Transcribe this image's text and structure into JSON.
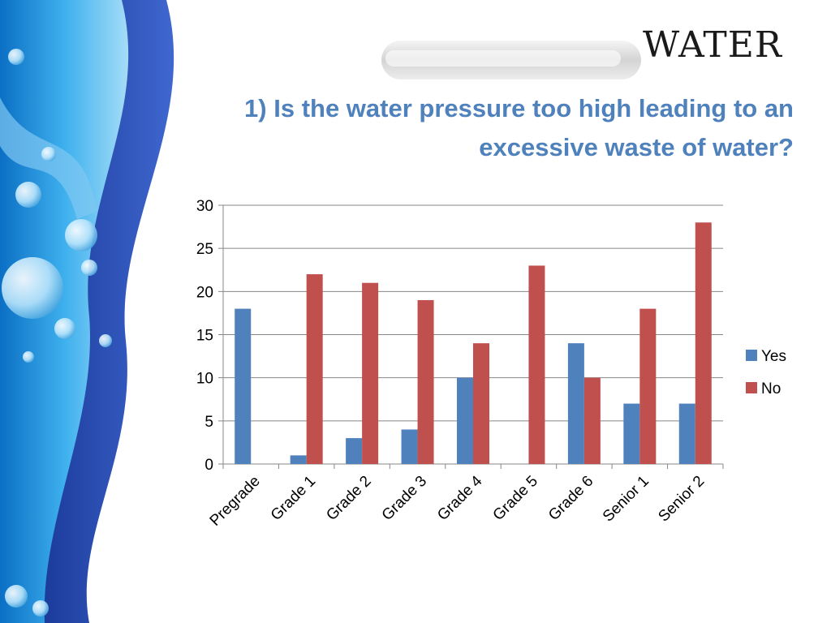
{
  "slide": {
    "title": "WATER",
    "question": "1) Is the water pressure too high leading to an excessive waste of water?"
  },
  "chart_data": {
    "type": "bar",
    "categories": [
      "Pregrade",
      "Grade 1",
      "Grade 2",
      "Grade 3",
      "Grade 4",
      "Grade 5",
      "Grade 6",
      "Senior 1",
      "Senior 2"
    ],
    "series": [
      {
        "name": "Yes",
        "color": "#4f81bd",
        "values": [
          18,
          1,
          3,
          4,
          10,
          0,
          14,
          7,
          7
        ]
      },
      {
        "name": "No",
        "color": "#c0504d",
        "values": [
          0,
          22,
          21,
          19,
          14,
          23,
          10,
          18,
          28
        ]
      }
    ],
    "ylim": [
      0,
      30
    ],
    "yticks": [
      0,
      5,
      10,
      15,
      20,
      25,
      30
    ],
    "grid": true,
    "legend": "right",
    "xlabel": "",
    "ylabel": ""
  }
}
